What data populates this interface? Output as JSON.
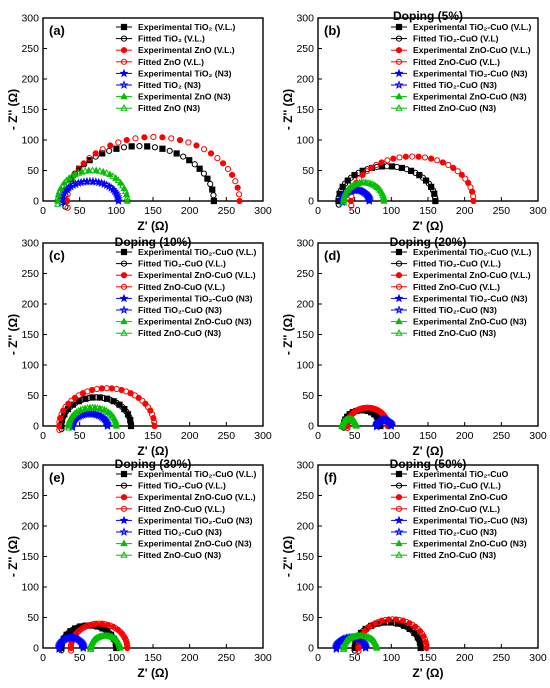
{
  "figure": {
    "panels": [
      {
        "label": "(a)",
        "title": "",
        "xlabel": "Z' (Ω)",
        "ylabel": "- Z'' (Ω)",
        "xlim": [
          0,
          300
        ],
        "ylim": [
          0,
          300
        ],
        "xticks": [
          0,
          50,
          100,
          150,
          200,
          250,
          300
        ],
        "yticks": [
          0,
          50,
          100,
          150,
          200,
          250,
          300
        ],
        "legend": [
          "Experimental TiO₂ (V.L.)",
          "Fitted TiO₂ (V.L.)",
          "Experimental ZnO (V.L.)",
          "Fitted ZnO (V.L.)",
          "Experimental TiO₂ (N3)",
          "Fitted TiO₂ (N3)",
          "Experimental ZnO (N3)",
          "Fitted ZnO (N3)"
        ]
      },
      {
        "label": "(b)",
        "title": "Doping (5%)",
        "xlabel": "Z' (Ω)",
        "ylabel": "- Z'' (Ω)",
        "xlim": [
          0,
          300
        ],
        "ylim": [
          0,
          300
        ],
        "xticks": [
          0,
          50,
          100,
          150,
          200,
          250,
          300
        ],
        "yticks": [
          0,
          50,
          100,
          150,
          200,
          250,
          300
        ],
        "legend": [
          "Experimental TiO₂-CuO (V.L.)",
          "Fitted TiO₂-CuO (V.L)",
          "Experimental ZnO-CuO (V.L.)",
          "Fitted ZnO-CuO (V.L.)",
          "Experimental TiO₂-CuO (N3)",
          "Fitted TiO₂-CuO (N3)",
          "Experimental ZnO-CuO (N3)",
          "Fitted ZnO-CuO (N3)"
        ]
      },
      {
        "label": "(c)",
        "title": "Doping (10%)",
        "xlabel": "Z' (Ω)",
        "ylabel": "- Z'' (Ω)",
        "xlim": [
          0,
          300
        ],
        "ylim": [
          0,
          300
        ],
        "xticks": [
          0,
          50,
          100,
          150,
          200,
          250,
          300
        ],
        "yticks": [
          0,
          50,
          100,
          150,
          200,
          250,
          300
        ],
        "legend": [
          "Experimental TiO₂-CuO (V.L.)",
          "Fitted TiO₂-CuO (V.L.)",
          "Experimental ZnO-CuO (V.L.)",
          "Fitted ZnO-CuO (V.L.)",
          "Experimental TiO₂-CuO (N3)",
          "Fitted TiO₂-CuO (N3)",
          "Experimental ZnO-CuO (N3)",
          "Fitted ZnO-CuO (N3)"
        ]
      },
      {
        "label": "(d)",
        "title": "Doping (20%)",
        "xlabel": "Z' (Ω)",
        "ylabel": "- Z'' (Ω)",
        "xlim": [
          0,
          300
        ],
        "ylim": [
          0,
          300
        ],
        "xticks": [
          0,
          50,
          100,
          150,
          200,
          250,
          300
        ],
        "yticks": [
          0,
          50,
          100,
          150,
          200,
          250,
          300
        ],
        "legend": [
          "Experimental TiO₂-CuO (V.L.)",
          "Fitted TiO₂-CuO (V.L.)",
          "Experimental ZnO-CuO (V.L.)",
          "Fitted ZnO-CuO (V.L.)",
          "Experimental TiO₂-CuO (N3)",
          "Fitted TiO₂-CuO (N3)",
          "Experimental ZnO-CuO (N3)",
          "Fitted ZnO-CuO (N3)"
        ]
      },
      {
        "label": "(e)",
        "title": "Doping (30%)",
        "xlabel": "Z' (Ω)",
        "ylabel": "- Z'' (Ω)",
        "xlim": [
          0,
          300
        ],
        "ylim": [
          0,
          300
        ],
        "xticks": [
          0,
          50,
          100,
          150,
          200,
          250,
          300
        ],
        "yticks": [
          0,
          50,
          100,
          150,
          200,
          250,
          300
        ],
        "legend": [
          "Experimental TiO₂-CuO (V.L.)",
          "Fitted TiO₂-CuO (V.L.)",
          "Experimental ZnO-CuO (V.L.)",
          "Fitted ZnO-CuO (V.L.)",
          "Experimental TiO₂-CuO (N3)",
          "Fitted TiO₂-CuO (N3)",
          "Experimental ZnO-CuO (N3)",
          "Fitted ZnO-CuO (N3)"
        ]
      },
      {
        "label": "(f)",
        "title": "Doping (50%)",
        "xlabel": "Z' (Ω)",
        "ylabel": "- Z'' (Ω)",
        "xlim": [
          0,
          300
        ],
        "ylim": [
          0,
          300
        ],
        "xticks": [
          0,
          50,
          100,
          150,
          200,
          250,
          300
        ],
        "yticks": [
          0,
          50,
          100,
          150,
          200,
          250,
          300
        ],
        "legend": [
          "Experimental TiO₂-CuO",
          "Fitted TiO₂-CuO (V.L.)",
          "Experimental ZnO-CuO",
          "Fitted ZnO-CuO (V.L.)",
          "Experimental TiO₂-CuO (N3)",
          "Fitted TiO₂-CuO (N3)",
          "Experimental ZnO-CuO (N3)",
          "Fitted ZnO-CuO (N3)"
        ]
      }
    ],
    "series_style": [
      {
        "color": "#000000",
        "marker": "square",
        "filled": true
      },
      {
        "color": "#000000",
        "marker": "circle",
        "filled": false
      },
      {
        "color": "#ff0000",
        "marker": "circle",
        "filled": true
      },
      {
        "color": "#ff0000",
        "marker": "circle",
        "filled": false
      },
      {
        "color": "#0000ff",
        "marker": "star",
        "filled": true
      },
      {
        "color": "#0000ff",
        "marker": "star",
        "filled": false
      },
      {
        "color": "#00c000",
        "marker": "triangle",
        "filled": true
      },
      {
        "color": "#00c000",
        "marker": "triangle",
        "filled": false
      }
    ]
  },
  "chart_data": [
    {
      "type": "scatter",
      "label": "(a)",
      "title": "",
      "xlabel": "Z' (Ω)",
      "ylabel": "- Z'' (Ω)",
      "xlim": [
        0,
        300
      ],
      "ylim": [
        0,
        300
      ],
      "arcs": [
        {
          "series": "TiO₂ (V.L.)",
          "x_start": 30,
          "x_end": 233,
          "peak_z": 90
        },
        {
          "series": "ZnO (V.L.)",
          "x_start": 33,
          "x_end": 268,
          "peak_z": 105
        },
        {
          "series": "TiO₂ (N3)",
          "x_start": 25,
          "x_end": 103,
          "peak_z": 32
        },
        {
          "series": "ZnO (N3)",
          "x_start": 20,
          "x_end": 115,
          "peak_z": 50
        }
      ]
    },
    {
      "type": "scatter",
      "label": "(b)",
      "title": "Doping (5%)",
      "xlabel": "Z' (Ω)",
      "ylabel": "- Z'' (Ω)",
      "xlim": [
        0,
        300
      ],
      "ylim": [
        0,
        300
      ],
      "arcs": [
        {
          "series": "TiO₂-CuO (V.L.)",
          "x_start": 28,
          "x_end": 160,
          "peak_z": 57
        },
        {
          "series": "ZnO-CuO (V.L.)",
          "x_start": 45,
          "x_end": 212,
          "peak_z": 73
        },
        {
          "series": "TiO₂-CuO (N3)",
          "x_start": 33,
          "x_end": 70,
          "peak_z": 18
        },
        {
          "series": "ZnO-CuO (N3)",
          "x_start": 35,
          "x_end": 90,
          "peak_z": 30
        }
      ]
    },
    {
      "type": "scatter",
      "label": "(c)",
      "title": "Doping (10%)",
      "xlabel": "Z' (Ω)",
      "ylabel": "- Z'' (Ω)",
      "xlim": [
        0,
        300
      ],
      "ylim": [
        0,
        300
      ],
      "arcs": [
        {
          "series": "TiO₂-CuO (V.L.)",
          "x_start": 25,
          "x_end": 120,
          "peak_z": 47
        },
        {
          "series": "ZnO-CuO (V.L.)",
          "x_start": 22,
          "x_end": 152,
          "peak_z": 62
        },
        {
          "series": "TiO₂-CuO (N3)",
          "x_start": 40,
          "x_end": 88,
          "peak_z": 20
        },
        {
          "series": "ZnO-CuO (N3)",
          "x_start": 35,
          "x_end": 100,
          "peak_z": 30
        }
      ]
    },
    {
      "type": "scatter",
      "label": "(d)",
      "title": "Doping (20%)",
      "xlabel": "Z' (Ω)",
      "ylabel": "- Z'' (Ω)",
      "xlim": [
        0,
        300
      ],
      "ylim": [
        0,
        300
      ],
      "arcs": [
        {
          "series": "TiO₂-CuO (V.L.)",
          "x_start": 35,
          "x_end": 85,
          "peak_z": 26
        },
        {
          "series": "ZnO-CuO (V.L.)",
          "x_start": 40,
          "x_end": 95,
          "peak_z": 30
        },
        {
          "series": "TiO₂-CuO (N3)",
          "x_start": 80,
          "x_end": 100,
          "peak_z": 10
        },
        {
          "series": "ZnO-CuO (N3)",
          "x_start": 33,
          "x_end": 52,
          "peak_z": 11
        }
      ]
    },
    {
      "type": "scatter",
      "label": "(e)",
      "title": "Doping (30%)",
      "xlabel": "Z' (Ω)",
      "ylabel": "- Z'' (Ω)",
      "xlim": [
        0,
        300
      ],
      "ylim": [
        0,
        300
      ],
      "arcs": [
        {
          "series": "TiO₂-CuO (V.L.)",
          "x_start": 25,
          "x_end": 100,
          "peak_z": 37
        },
        {
          "series": "ZnO-CuO (V.L.)",
          "x_start": 38,
          "x_end": 115,
          "peak_z": 40
        },
        {
          "series": "TiO₂-CuO (N3)",
          "x_start": 22,
          "x_end": 55,
          "peak_z": 17
        },
        {
          "series": "ZnO-CuO (N3)",
          "x_start": 65,
          "x_end": 105,
          "peak_z": 20
        }
      ]
    },
    {
      "type": "scatter",
      "label": "(f)",
      "title": "Doping (50%)",
      "xlabel": "Z' (Ω)",
      "ylabel": "- Z'' (Ω)",
      "xlim": [
        0,
        300
      ],
      "ylim": [
        0,
        300
      ],
      "arcs": [
        {
          "series": "TiO₂-CuO (V.L.)",
          "x_start": 50,
          "x_end": 140,
          "peak_z": 42
        },
        {
          "series": "ZnO-CuO (V.L.)",
          "x_start": 55,
          "x_end": 148,
          "peak_z": 47
        },
        {
          "series": "TiO₂-CuO (N3)",
          "x_start": 25,
          "x_end": 65,
          "peak_z": 17
        },
        {
          "series": "ZnO-CuO (N3)",
          "x_start": 35,
          "x_end": 80,
          "peak_z": 20
        }
      ]
    }
  ]
}
